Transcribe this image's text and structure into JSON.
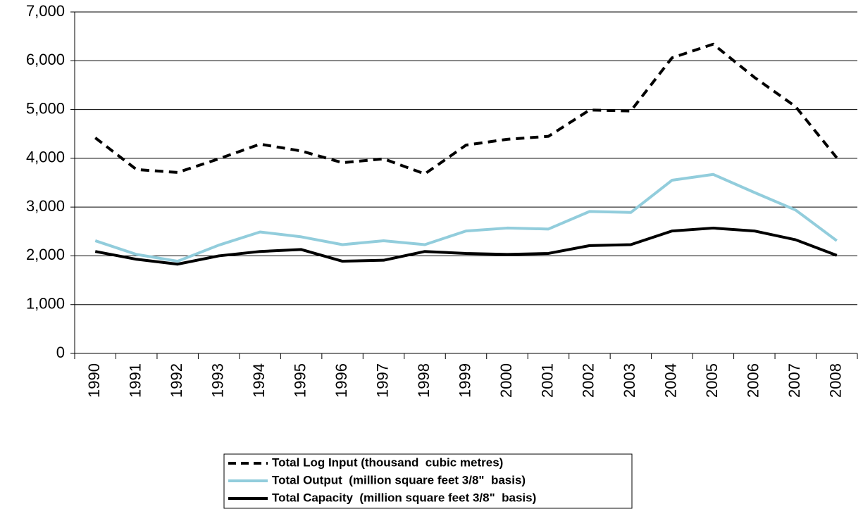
{
  "chart_data": {
    "type": "line",
    "categories": [
      "1990",
      "1991",
      "1992",
      "1993",
      "1994",
      "1995",
      "1996",
      "1997",
      "1998",
      "1999",
      "2000",
      "2001",
      "2002",
      "2003",
      "2004",
      "2005",
      "2006",
      "2007",
      "2008"
    ],
    "series": [
      {
        "name": "Total Log Input (thousand  cubic metres)",
        "color": "#000000",
        "dash": true,
        "values": [
          4420,
          3770,
          3710,
          3990,
          4290,
          4150,
          3910,
          3990,
          3680,
          4270,
          4390,
          4450,
          4990,
          4970,
          6060,
          6340,
          5660,
          5060,
          4010
        ]
      },
      {
        "name": "Total Output  (million square feet 3/8\"  basis)",
        "color": "#92cddc",
        "dash": false,
        "values": [
          2310,
          2030,
          1890,
          2220,
          2490,
          2390,
          2230,
          2310,
          2230,
          2510,
          2570,
          2550,
          2910,
          2890,
          3550,
          3670,
          3300,
          2940,
          2310
        ]
      },
      {
        "name": "Total Capacity  (million square feet 3/8\"  basis)",
        "color": "#000000",
        "dash": false,
        "values": [
          2090,
          1930,
          1830,
          2000,
          2090,
          2130,
          1890,
          1910,
          2090,
          2050,
          2030,
          2050,
          2210,
          2230,
          2510,
          2570,
          2510,
          2330,
          2010
        ]
      }
    ],
    "ylim": [
      0,
      7000
    ],
    "yticks": [
      0,
      {
        "value": 1000,
        "label": "1,000"
      },
      {
        "value": 2000,
        "label": "2,000"
      },
      {
        "value": 3000,
        "label": "3,000"
      },
      {
        "value": 4000,
        "label": "4,000"
      },
      {
        "value": 5000,
        "label": "5,000"
      },
      {
        "value": 6000,
        "label": "6,000"
      },
      {
        "value": 7000,
        "label": "7,000"
      }
    ],
    "grid": true,
    "legend": "bottom"
  }
}
